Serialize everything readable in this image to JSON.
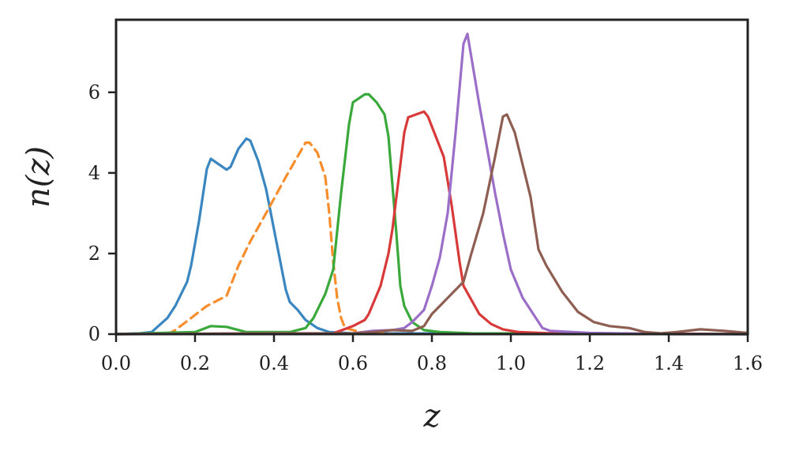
{
  "chart_data": {
    "type": "line",
    "xlabel": "z",
    "ylabel": "n(z)",
    "xlim": [
      0.0,
      1.6
    ],
    "ylim": [
      0,
      7.8
    ],
    "x_ticks": [
      "0.0",
      "0.2",
      "0.4",
      "0.6",
      "0.8",
      "1.0",
      "1.2",
      "1.4",
      "1.6"
    ],
    "y_ticks": [
      "0",
      "2",
      "4",
      "6"
    ],
    "grid": false,
    "legend": "none",
    "series": [
      {
        "color": "#3a86c0",
        "dash": "solid",
        "points": [
          [
            0.0,
            0.0
          ],
          [
            0.06,
            0.02
          ],
          [
            0.09,
            0.05
          ],
          [
            0.13,
            0.4
          ],
          [
            0.15,
            0.7
          ],
          [
            0.18,
            1.3
          ],
          [
            0.19,
            1.7
          ],
          [
            0.21,
            2.8
          ],
          [
            0.23,
            4.1
          ],
          [
            0.24,
            4.35
          ],
          [
            0.28,
            4.08
          ],
          [
            0.29,
            4.15
          ],
          [
            0.31,
            4.6
          ],
          [
            0.33,
            4.85
          ],
          [
            0.34,
            4.8
          ],
          [
            0.36,
            4.3
          ],
          [
            0.38,
            3.6
          ],
          [
            0.41,
            2.1
          ],
          [
            0.43,
            1.1
          ],
          [
            0.44,
            0.8
          ],
          [
            0.46,
            0.6
          ],
          [
            0.48,
            0.35
          ],
          [
            0.51,
            0.15
          ],
          [
            0.54,
            0.05
          ],
          [
            0.6,
            0.02
          ],
          [
            1.6,
            0.0
          ]
        ]
      },
      {
        "color": "#f78d2d",
        "dash": "dashed",
        "points": [
          [
            0.13,
            0.0
          ],
          [
            0.15,
            0.1
          ],
          [
            0.19,
            0.4
          ],
          [
            0.23,
            0.7
          ],
          [
            0.28,
            0.95
          ],
          [
            0.31,
            1.7
          ],
          [
            0.34,
            2.3
          ],
          [
            0.38,
            3.0
          ],
          [
            0.43,
            3.9
          ],
          [
            0.48,
            4.75
          ],
          [
            0.49,
            4.75
          ],
          [
            0.51,
            4.5
          ],
          [
            0.53,
            3.9
          ],
          [
            0.54,
            3.0
          ],
          [
            0.55,
            1.8
          ],
          [
            0.56,
            0.9
          ],
          [
            0.57,
            0.4
          ],
          [
            0.58,
            0.15
          ],
          [
            0.62,
            0.05
          ],
          [
            0.7,
            0.0
          ]
        ]
      },
      {
        "color": "#3aa83a",
        "dash": "solid",
        "points": [
          [
            0.0,
            0.0
          ],
          [
            0.2,
            0.05
          ],
          [
            0.24,
            0.2
          ],
          [
            0.28,
            0.18
          ],
          [
            0.33,
            0.05
          ],
          [
            0.44,
            0.05
          ],
          [
            0.48,
            0.15
          ],
          [
            0.5,
            0.4
          ],
          [
            0.53,
            1.0
          ],
          [
            0.55,
            1.6
          ],
          [
            0.57,
            3.5
          ],
          [
            0.59,
            5.2
          ],
          [
            0.6,
            5.75
          ],
          [
            0.63,
            5.95
          ],
          [
            0.64,
            5.95
          ],
          [
            0.66,
            5.75
          ],
          [
            0.68,
            5.45
          ],
          [
            0.69,
            4.9
          ],
          [
            0.71,
            2.5
          ],
          [
            0.72,
            1.2
          ],
          [
            0.73,
            0.7
          ],
          [
            0.75,
            0.3
          ],
          [
            0.78,
            0.1
          ],
          [
            0.82,
            0.05
          ],
          [
            0.9,
            0.02
          ],
          [
            1.6,
            0.0
          ]
        ]
      },
      {
        "color": "#d83a3a",
        "dash": "solid",
        "points": [
          [
            0.0,
            0.0
          ],
          [
            0.4,
            0.02
          ],
          [
            0.55,
            0.02
          ],
          [
            0.6,
            0.2
          ],
          [
            0.63,
            0.35
          ],
          [
            0.64,
            0.5
          ],
          [
            0.67,
            1.2
          ],
          [
            0.69,
            2.0
          ],
          [
            0.7,
            2.6
          ],
          [
            0.73,
            5.0
          ],
          [
            0.74,
            5.38
          ],
          [
            0.78,
            5.52
          ],
          [
            0.79,
            5.4
          ],
          [
            0.81,
            4.9
          ],
          [
            0.83,
            4.4
          ],
          [
            0.85,
            3.2
          ],
          [
            0.87,
            1.8
          ],
          [
            0.88,
            1.2
          ],
          [
            0.92,
            0.5
          ],
          [
            0.95,
            0.25
          ],
          [
            0.98,
            0.12
          ],
          [
            1.02,
            0.05
          ],
          [
            1.1,
            0.02
          ],
          [
            1.6,
            0.0
          ]
        ]
      },
      {
        "color": "#9b6fc8",
        "dash": "solid",
        "points": [
          [
            0.0,
            0.0
          ],
          [
            0.6,
            0.02
          ],
          [
            0.65,
            0.08
          ],
          [
            0.7,
            0.1
          ],
          [
            0.73,
            0.15
          ],
          [
            0.75,
            0.3
          ],
          [
            0.78,
            0.6
          ],
          [
            0.8,
            1.2
          ],
          [
            0.82,
            1.9
          ],
          [
            0.84,
            3.0
          ],
          [
            0.86,
            5.0
          ],
          [
            0.88,
            7.2
          ],
          [
            0.89,
            7.45
          ],
          [
            0.92,
            5.7
          ],
          [
            0.94,
            4.6
          ],
          [
            0.96,
            3.5
          ],
          [
            0.98,
            2.5
          ],
          [
            1.0,
            1.6
          ],
          [
            1.03,
            0.9
          ],
          [
            1.06,
            0.45
          ],
          [
            1.08,
            0.15
          ],
          [
            1.1,
            0.08
          ],
          [
            1.2,
            0.03
          ],
          [
            1.4,
            0.0
          ],
          [
            1.6,
            0.0
          ]
        ]
      },
      {
        "color": "#8e5e52",
        "dash": "solid",
        "points": [
          [
            0.0,
            0.0
          ],
          [
            0.6,
            0.02
          ],
          [
            0.65,
            0.05
          ],
          [
            0.7,
            0.1
          ],
          [
            0.75,
            0.08
          ],
          [
            0.78,
            0.2
          ],
          [
            0.8,
            0.5
          ],
          [
            0.83,
            0.8
          ],
          [
            0.86,
            1.1
          ],
          [
            0.88,
            1.3
          ],
          [
            0.9,
            2.0
          ],
          [
            0.93,
            3.0
          ],
          [
            0.96,
            4.4
          ],
          [
            0.98,
            5.4
          ],
          [
            0.99,
            5.45
          ],
          [
            1.01,
            5.0
          ],
          [
            1.03,
            4.2
          ],
          [
            1.05,
            3.4
          ],
          [
            1.07,
            2.1
          ],
          [
            1.09,
            1.7
          ],
          [
            1.13,
            1.05
          ],
          [
            1.17,
            0.55
          ],
          [
            1.21,
            0.3
          ],
          [
            1.25,
            0.2
          ],
          [
            1.3,
            0.15
          ],
          [
            1.34,
            0.05
          ],
          [
            1.38,
            0.02
          ],
          [
            1.42,
            0.05
          ],
          [
            1.48,
            0.12
          ],
          [
            1.54,
            0.08
          ],
          [
            1.6,
            0.03
          ]
        ]
      }
    ]
  }
}
